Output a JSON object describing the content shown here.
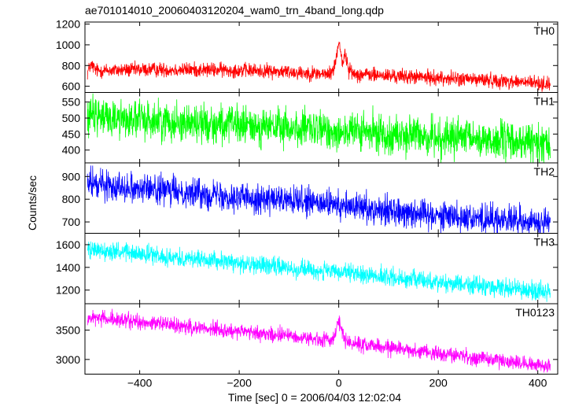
{
  "chart_data": {
    "type": "line",
    "title": "ae701014010_20060403120204_wam0_trn_4band_long.qdp",
    "xlabel": "Time [sec] 0 = 2006/04/03 12:02:04",
    "ylabel": "Counts/sec",
    "xlim": [
      -510,
      440
    ],
    "x_ticks": [
      -400,
      -200,
      0,
      200,
      400
    ],
    "x_tick_labels": [
      "−400",
      "−200",
      "0",
      "200",
      "400"
    ],
    "panels": [
      {
        "name": "TH0",
        "color": "#ff0000",
        "ylim": [
          540,
          1220
        ],
        "y_ticks": [
          600,
          800,
          1000,
          1200
        ],
        "trend_x": [
          -505,
          -500,
          -495,
          -490,
          -485,
          -400,
          -300,
          -200,
          -100,
          -20,
          -10,
          -5,
          -2,
          0,
          2,
          5,
          8,
          12,
          15,
          20,
          30,
          100,
          200,
          300,
          400,
          425
        ],
        "trend_y": [
          730,
          790,
          800,
          760,
          750,
          760,
          760,
          755,
          740,
          715,
          760,
          880,
          960,
          1050,
          1000,
          900,
          820,
          900,
          870,
          760,
          720,
          700,
          680,
          660,
          630,
          620
        ],
        "noise": 35
      },
      {
        "name": "TH1",
        "color": "#00ff00",
        "ylim": [
          360,
          580
        ],
        "y_ticks": [
          400,
          450,
          500,
          550
        ],
        "trend_x": [
          -505,
          425
        ],
        "trend_y": [
          505,
          420
        ],
        "noise": 30
      },
      {
        "name": "TH2",
        "color": "#0000ff",
        "ylim": [
          650,
          960
        ],
        "y_ticks": [
          700,
          800,
          900
        ],
        "trend_x": [
          -505,
          425
        ],
        "trend_y": [
          870,
          690
        ],
        "noise": 32
      },
      {
        "name": "TH3",
        "color": "#00ffff",
        "ylim": [
          1080,
          1700
        ],
        "y_ticks": [
          1200,
          1400,
          1600
        ],
        "trend_x": [
          -505,
          -500,
          425
        ],
        "trend_y": [
          1580,
          1560,
          1180
        ],
        "noise": 40
      },
      {
        "name": "TH0123",
        "color": "#ff00ff",
        "ylim": [
          2750,
          3950
        ],
        "y_ticks": [
          3000,
          3500
        ],
        "trend_x": [
          -505,
          -100,
          -20,
          -10,
          -5,
          0,
          5,
          10,
          20,
          60,
          425
        ],
        "trend_y": [
          3720,
          3400,
          3320,
          3380,
          3520,
          3720,
          3500,
          3380,
          3280,
          3250,
          2880
        ],
        "noise": 65
      }
    ]
  }
}
